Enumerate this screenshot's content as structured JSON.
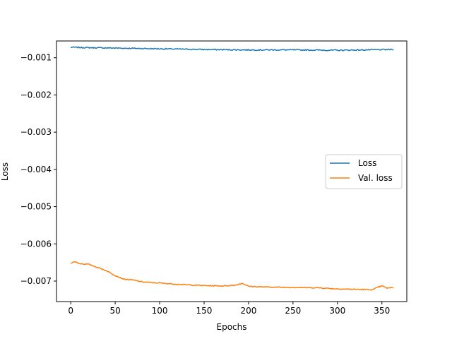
{
  "chart_data": {
    "type": "line",
    "title": "",
    "xlabel": "Epochs",
    "ylabel": "Loss",
    "xlim": [
      -16,
      378
    ],
    "ylim": [
      -0.00755,
      -0.00055
    ],
    "xticks": [
      0,
      50,
      100,
      150,
      200,
      250,
      300,
      350
    ],
    "yticks": [
      -0.001,
      -0.002,
      -0.003,
      -0.004,
      -0.005,
      -0.006,
      -0.007
    ],
    "ytick_labels": [
      "−0.001",
      "−0.002",
      "−0.003",
      "−0.004",
      "−0.005",
      "−0.006",
      "−0.007"
    ],
    "grid": false,
    "legend_position": "center-right",
    "n_epochs": 364,
    "series": [
      {
        "name": "Loss",
        "color": "#1f77b4",
        "keypoints": [
          [
            0,
            -0.00072
          ],
          [
            20,
            -0.00073
          ],
          [
            50,
            -0.00074
          ],
          [
            100,
            -0.00076
          ],
          [
            150,
            -0.00078
          ],
          [
            200,
            -0.00079
          ],
          [
            250,
            -0.00079
          ],
          [
            300,
            -0.0008
          ],
          [
            363,
            -0.00078
          ]
        ],
        "noise": 3e-05
      },
      {
        "name": "Val. loss",
        "color": "#ff7f0e",
        "keypoints": [
          [
            0,
            -0.00651
          ],
          [
            5,
            -0.00648
          ],
          [
            10,
            -0.00653
          ],
          [
            20,
            -0.00655
          ],
          [
            30,
            -0.00663
          ],
          [
            40,
            -0.00672
          ],
          [
            50,
            -0.00685
          ],
          [
            60,
            -0.00695
          ],
          [
            70,
            -0.00697
          ],
          [
            80,
            -0.00702
          ],
          [
            90,
            -0.00704
          ],
          [
            100,
            -0.00705
          ],
          [
            110,
            -0.00707
          ],
          [
            130,
            -0.0071
          ],
          [
            150,
            -0.00712
          ],
          [
            170,
            -0.00713
          ],
          [
            185,
            -0.00711
          ],
          [
            193,
            -0.00706
          ],
          [
            200,
            -0.00714
          ],
          [
            220,
            -0.00716
          ],
          [
            250,
            -0.00717
          ],
          [
            280,
            -0.00718
          ],
          [
            300,
            -0.00721
          ],
          [
            320,
            -0.00722
          ],
          [
            340,
            -0.00723
          ],
          [
            346,
            -0.00716
          ],
          [
            350,
            -0.00713
          ],
          [
            356,
            -0.00719
          ],
          [
            363,
            -0.00717
          ]
        ],
        "noise": 2.5e-05
      }
    ]
  }
}
